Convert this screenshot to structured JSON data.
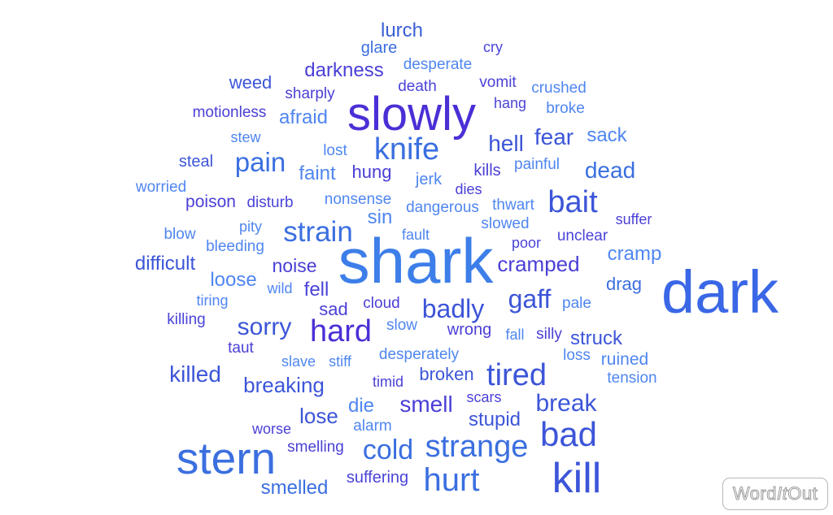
{
  "words": [
    {
      "text": "lurch",
      "color": "#3a5fd6"
    },
    {
      "text": "glare",
      "color": "#3b6fe0"
    },
    {
      "text": "cry",
      "color": "#4a44d8"
    },
    {
      "text": "desperate",
      "color": "#4f86f0"
    },
    {
      "text": "darkness",
      "color": "#4a3fd6"
    },
    {
      "text": "weed",
      "color": "#3c55d8"
    },
    {
      "text": "death",
      "color": "#4a44d8"
    },
    {
      "text": "vomit",
      "color": "#4a3fd6"
    },
    {
      "text": "sharply",
      "color": "#4a3fd6"
    },
    {
      "text": "crushed",
      "color": "#4f86f0"
    },
    {
      "text": "slowly",
      "color": "#4b2fd6"
    },
    {
      "text": "hang",
      "color": "#4a44d8"
    },
    {
      "text": "broke",
      "color": "#4f86f0"
    },
    {
      "text": "motionless",
      "color": "#4a3fd6"
    },
    {
      "text": "afraid",
      "color": "#4f86f0"
    },
    {
      "text": "stew",
      "color": "#4f86f0"
    },
    {
      "text": "knife",
      "color": "#3b6fe0"
    },
    {
      "text": "hell",
      "color": "#3c55d8"
    },
    {
      "text": "fear",
      "color": "#3c55d8"
    },
    {
      "text": "sack",
      "color": "#4f86f0"
    },
    {
      "text": "lost",
      "color": "#4f86f0"
    },
    {
      "text": "steal",
      "color": "#3c55d8"
    },
    {
      "text": "pain",
      "color": "#3b6fe0"
    },
    {
      "text": "faint",
      "color": "#4f86f0"
    },
    {
      "text": "hung",
      "color": "#4a3fd6"
    },
    {
      "text": "kills",
      "color": "#4a3fd6"
    },
    {
      "text": "painful",
      "color": "#4f86f0"
    },
    {
      "text": "dead",
      "color": "#3b6fe0"
    },
    {
      "text": "worried",
      "color": "#4f86f0"
    },
    {
      "text": "jerk",
      "color": "#4f86f0"
    },
    {
      "text": "dies",
      "color": "#4a3fd6"
    },
    {
      "text": "poison",
      "color": "#4a3fd6"
    },
    {
      "text": "disturb",
      "color": "#4a44d8"
    },
    {
      "text": "nonsense",
      "color": "#4f86f0"
    },
    {
      "text": "bait",
      "color": "#3c55d8"
    },
    {
      "text": "thwart",
      "color": "#4f86f0"
    },
    {
      "text": "dangerous",
      "color": "#4f86f0"
    },
    {
      "text": "sin",
      "color": "#4f86f0"
    },
    {
      "text": "suffer",
      "color": "#4a3fd6"
    },
    {
      "text": "slowed",
      "color": "#4f86f0"
    },
    {
      "text": "pity",
      "color": "#4f86f0"
    },
    {
      "text": "strain",
      "color": "#3b6fe0"
    },
    {
      "text": "blow",
      "color": "#4f86f0"
    },
    {
      "text": "fault",
      "color": "#4f86f0"
    },
    {
      "text": "unclear",
      "color": "#4a44d8"
    },
    {
      "text": "poor",
      "color": "#4a44d8"
    },
    {
      "text": "bleeding",
      "color": "#4f86f0"
    },
    {
      "text": "shark",
      "color": "#3d7ee8"
    },
    {
      "text": "cramp",
      "color": "#4f86f0"
    },
    {
      "text": "difficult",
      "color": "#3c55d8"
    },
    {
      "text": "noise",
      "color": "#4a3fd6"
    },
    {
      "text": "cramped",
      "color": "#4a3fd6"
    },
    {
      "text": "loose",
      "color": "#4f86f0"
    },
    {
      "text": "dark",
      "color": "#3a67e6"
    },
    {
      "text": "wild",
      "color": "#4f86f0"
    },
    {
      "text": "fell",
      "color": "#4a44d8"
    },
    {
      "text": "drag",
      "color": "#3b6fe0"
    },
    {
      "text": "tiring",
      "color": "#4f86f0"
    },
    {
      "text": "sad",
      "color": "#4a3fd6"
    },
    {
      "text": "cloud",
      "color": "#4a3fd6"
    },
    {
      "text": "badly",
      "color": "#3c55d8"
    },
    {
      "text": "gaff",
      "color": "#3c55d8"
    },
    {
      "text": "pale",
      "color": "#4f86f0"
    },
    {
      "text": "killing",
      "color": "#4a44d8"
    },
    {
      "text": "sorry",
      "color": "#3c55d8"
    },
    {
      "text": "hard",
      "color": "#4b2fd6"
    },
    {
      "text": "slow",
      "color": "#4f86f0"
    },
    {
      "text": "wrong",
      "color": "#4a3fd6"
    },
    {
      "text": "fall",
      "color": "#4f86f0"
    },
    {
      "text": "silly",
      "color": "#4a3fd6"
    },
    {
      "text": "struck",
      "color": "#3c55d8"
    },
    {
      "text": "taut",
      "color": "#4a3fd6"
    },
    {
      "text": "desperately",
      "color": "#4f86f0"
    },
    {
      "text": "loss",
      "color": "#4f86f0"
    },
    {
      "text": "ruined",
      "color": "#4f86f0"
    },
    {
      "text": "slave",
      "color": "#4f86f0"
    },
    {
      "text": "stiff",
      "color": "#4f86f0"
    },
    {
      "text": "killed",
      "color": "#3c55d8"
    },
    {
      "text": "tired",
      "color": "#3c55d8"
    },
    {
      "text": "broken",
      "color": "#3c55d8"
    },
    {
      "text": "tension",
      "color": "#4f86f0"
    },
    {
      "text": "breaking",
      "color": "#3c55d8"
    },
    {
      "text": "timid",
      "color": "#4a3fd6"
    },
    {
      "text": "smell",
      "color": "#4a3fd6"
    },
    {
      "text": "scars",
      "color": "#4a3fd6"
    },
    {
      "text": "break",
      "color": "#3c55d8"
    },
    {
      "text": "die",
      "color": "#4f86f0"
    },
    {
      "text": "lose",
      "color": "#3c55d8"
    },
    {
      "text": "stupid",
      "color": "#3c55d8"
    },
    {
      "text": "alarm",
      "color": "#4f86f0"
    },
    {
      "text": "worse",
      "color": "#4a3fd6"
    },
    {
      "text": "bad",
      "color": "#3c55d8"
    },
    {
      "text": "strange",
      "color": "#3b6fe0"
    },
    {
      "text": "cold",
      "color": "#3b6fe0"
    },
    {
      "text": "smelling",
      "color": "#4a3fd6"
    },
    {
      "text": "stern",
      "color": "#3b6fe0"
    },
    {
      "text": "kill",
      "color": "#3c55d8"
    },
    {
      "text": "hurt",
      "color": "#3b6fe0"
    },
    {
      "text": "suffering",
      "color": "#4a44d8"
    },
    {
      "text": "smelled",
      "color": "#3b6fe0"
    }
  ],
  "logo": {
    "word": "Word",
    "it": "It",
    "out": "Out"
  }
}
